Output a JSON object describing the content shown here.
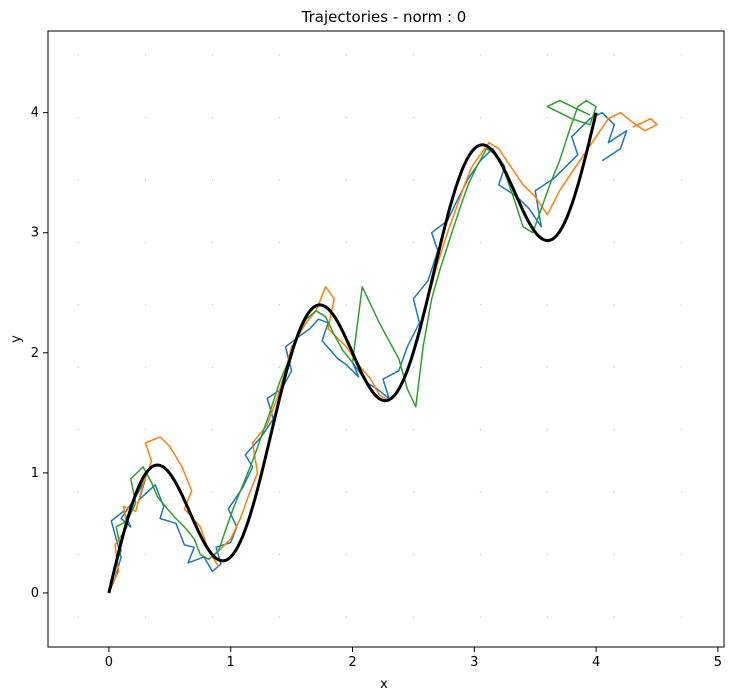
{
  "chart_data": {
    "type": "line",
    "title": "Trajectories - norm : 0",
    "xlabel": "x",
    "ylabel": "y",
    "xlim": [
      -0.5,
      5.05
    ],
    "ylim": [
      -0.45,
      4.68
    ],
    "x_ticks": [
      0,
      1,
      2,
      3,
      4,
      5
    ],
    "x_tick_labels": [
      "0",
      "1",
      "2",
      "3",
      "4",
      "5"
    ],
    "y_ticks": [
      0,
      1,
      2,
      3,
      4
    ],
    "y_tick_labels": [
      "0",
      "1",
      "2",
      "3",
      "4"
    ],
    "grid": "dotted points",
    "legend": "none",
    "reference_curve": {
      "color": "#000000",
      "description_formula": "y = x + 0.7*sin(1.5*pi*x)",
      "x_range": [
        0,
        4
      ]
    },
    "series": [
      {
        "color": "#1f77b4",
        "x": [
          0.0,
          0.05,
          0.1,
          0.02,
          0.12,
          0.18,
          0.1,
          0.22,
          0.3,
          0.25,
          0.38,
          0.45,
          0.42,
          0.55,
          0.62,
          0.7,
          0.65,
          0.78,
          0.85,
          0.92,
          0.88,
          1.0,
          1.05,
          0.98,
          1.1,
          1.18,
          1.12,
          1.25,
          1.35,
          1.3,
          1.42,
          1.5,
          1.45,
          1.58,
          1.65,
          1.72,
          1.8,
          1.75,
          1.88,
          1.95,
          2.05,
          2.0,
          2.12,
          2.2,
          2.3,
          2.25,
          2.38,
          2.45,
          2.55,
          2.5,
          2.62,
          2.7,
          2.65,
          2.78,
          2.85,
          2.95,
          3.05,
          3.15,
          3.25,
          3.2,
          3.35,
          3.45,
          3.55,
          3.5,
          3.65,
          3.75,
          3.85,
          3.8,
          3.95,
          4.05,
          4.15,
          4.1,
          4.25,
          4.2,
          4.05
        ],
        "y": [
          0.0,
          0.12,
          0.3,
          0.6,
          0.68,
          0.55,
          0.62,
          0.8,
          0.95,
          0.78,
          0.9,
          0.72,
          0.62,
          0.58,
          0.4,
          0.38,
          0.25,
          0.3,
          0.18,
          0.24,
          0.38,
          0.42,
          0.55,
          0.7,
          0.88,
          1.05,
          1.15,
          1.3,
          1.45,
          1.62,
          1.7,
          1.85,
          2.05,
          2.15,
          2.2,
          2.28,
          2.25,
          2.1,
          1.95,
          1.9,
          1.8,
          1.92,
          1.75,
          1.7,
          1.62,
          1.78,
          1.85,
          2.05,
          2.25,
          2.45,
          2.6,
          2.85,
          3.0,
          3.1,
          3.25,
          3.45,
          3.6,
          3.7,
          3.55,
          3.4,
          3.3,
          3.2,
          3.05,
          3.35,
          3.45,
          3.55,
          3.65,
          3.8,
          3.95,
          4.0,
          3.9,
          3.75,
          3.85,
          3.7,
          3.6
        ]
      },
      {
        "color": "#ff7f0e",
        "x": [
          0.0,
          0.08,
          0.05,
          0.15,
          0.12,
          0.22,
          0.28,
          0.35,
          0.3,
          0.42,
          0.5,
          0.6,
          0.68,
          0.62,
          0.75,
          0.82,
          0.9,
          0.85,
          1.0,
          1.08,
          1.15,
          1.22,
          1.18,
          1.3,
          1.38,
          1.45,
          1.5,
          1.62,
          1.7,
          1.78,
          1.85,
          1.8,
          1.95,
          2.05,
          2.15,
          2.22,
          2.3,
          2.4,
          2.48,
          2.55,
          2.62,
          2.7,
          2.78,
          2.85,
          2.92,
          2.98,
          3.05,
          3.12,
          3.2,
          3.3,
          3.4,
          3.5,
          3.6,
          3.7,
          3.8,
          3.9,
          4.0,
          4.1,
          4.2,
          4.3,
          4.4,
          4.5,
          4.45,
          4.3
        ],
        "y": [
          0.02,
          0.18,
          0.4,
          0.55,
          0.72,
          0.68,
          0.9,
          1.1,
          1.25,
          1.3,
          1.22,
          1.05,
          0.85,
          0.7,
          0.55,
          0.35,
          0.22,
          0.3,
          0.45,
          0.62,
          0.82,
          1.0,
          1.25,
          1.4,
          1.62,
          1.85,
          2.05,
          2.25,
          2.35,
          2.55,
          2.45,
          2.2,
          2.05,
          1.9,
          1.78,
          1.65,
          1.6,
          1.72,
          1.95,
          2.2,
          2.45,
          2.75,
          3.0,
          3.2,
          3.4,
          3.55,
          3.65,
          3.75,
          3.7,
          3.55,
          3.4,
          3.3,
          3.15,
          3.35,
          3.5,
          3.65,
          3.8,
          3.95,
          4.0,
          3.92,
          3.85,
          3.9,
          3.95,
          3.88
        ]
      },
      {
        "color": "#2ca02c",
        "x": [
          0.0,
          0.04,
          0.1,
          0.06,
          0.15,
          0.22,
          0.18,
          0.28,
          0.35,
          0.4,
          0.48,
          0.55,
          0.62,
          0.7,
          0.75,
          0.82,
          0.9,
          0.95,
          1.02,
          1.1,
          1.18,
          1.25,
          1.32,
          1.4,
          1.48,
          1.55,
          1.62,
          1.7,
          1.78,
          1.85,
          1.92,
          2.0,
          2.08,
          2.15,
          2.22,
          2.3,
          2.38,
          2.45,
          2.52,
          2.58,
          2.65,
          2.72,
          2.8,
          2.88,
          2.95,
          3.02,
          3.1,
          3.18,
          3.25,
          3.32,
          3.4,
          3.48,
          3.55,
          3.62,
          3.7,
          3.78,
          3.85,
          3.92,
          4.0,
          3.95,
          3.8,
          3.6,
          3.7,
          3.95
        ],
        "y": [
          0.03,
          0.2,
          0.35,
          0.55,
          0.6,
          0.75,
          0.95,
          1.05,
          0.92,
          0.8,
          0.7,
          0.62,
          0.55,
          0.45,
          0.32,
          0.28,
          0.35,
          0.5,
          0.7,
          0.9,
          1.1,
          1.3,
          1.5,
          1.75,
          1.95,
          2.15,
          2.28,
          2.35,
          2.3,
          2.15,
          2.02,
          1.92,
          2.55,
          2.4,
          2.25,
          2.1,
          1.95,
          1.7,
          1.55,
          2.05,
          2.45,
          2.7,
          2.95,
          3.2,
          3.4,
          3.55,
          3.7,
          3.65,
          3.5,
          3.3,
          3.05,
          3.0,
          3.2,
          3.4,
          3.6,
          3.85,
          4.05,
          4.1,
          4.05,
          3.9,
          3.95,
          4.05,
          4.1,
          3.98
        ]
      }
    ]
  }
}
